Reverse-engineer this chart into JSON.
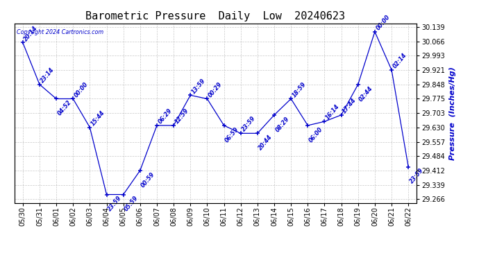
{
  "title": "Barometric Pressure  Daily  Low  20240623",
  "ylabel": "Pressure  (Inches/Hg)",
  "copyright": "Copyright 2024 Cartronics.com",
  "line_color": "#0000cc",
  "background_color": "#ffffff",
  "grid_color": "#aaaaaa",
  "title_color": "#000000",
  "ylabel_color": "#0000cc",
  "copyright_color": "#0000cc",
  "ylim_min": 29.248,
  "ylim_max": 30.157,
  "ytick_values": [
    29.266,
    29.339,
    29.412,
    29.484,
    29.557,
    29.63,
    29.703,
    29.775,
    29.848,
    29.921,
    29.993,
    30.066,
    30.139
  ],
  "dates": [
    "05/30",
    "05/31",
    "06/01",
    "06/02",
    "06/03",
    "06/04",
    "06/05",
    "06/06",
    "06/07",
    "06/08",
    "06/09",
    "06/10",
    "06/11",
    "06/12",
    "06/13",
    "06/14",
    "06/15",
    "06/16",
    "06/17",
    "06/18",
    "06/19",
    "06/20",
    "06/21",
    "06/22"
  ],
  "values": [
    30.06,
    29.848,
    29.775,
    29.775,
    29.63,
    29.29,
    29.29,
    29.412,
    29.64,
    29.64,
    29.793,
    29.775,
    29.64,
    29.6,
    29.6,
    29.693,
    29.775,
    29.64,
    29.66,
    29.693,
    29.848,
    30.115,
    29.921,
    29.43
  ],
  "point_times": [
    "20:14",
    "23:14",
    "04:52",
    "00:00",
    "15:44",
    "23:59",
    "05:59",
    "00:59",
    "06:29",
    "12:59",
    "13:59",
    "00:29",
    "06:59",
    "23:59",
    "20:44",
    "08:29",
    "18:59",
    "06:00",
    "16:14",
    "17:44",
    "02:44",
    "00:00",
    "02:14",
    "23:59"
  ],
  "annot_above": [
    true,
    true,
    false,
    true,
    true,
    false,
    false,
    false,
    true,
    true,
    true,
    true,
    false,
    true,
    false,
    false,
    true,
    false,
    true,
    true,
    false,
    true,
    true,
    false
  ],
  "title_fontsize": 11,
  "tick_fontsize": 7,
  "annot_fontsize": 5.8,
  "ylabel_fontsize": 8
}
